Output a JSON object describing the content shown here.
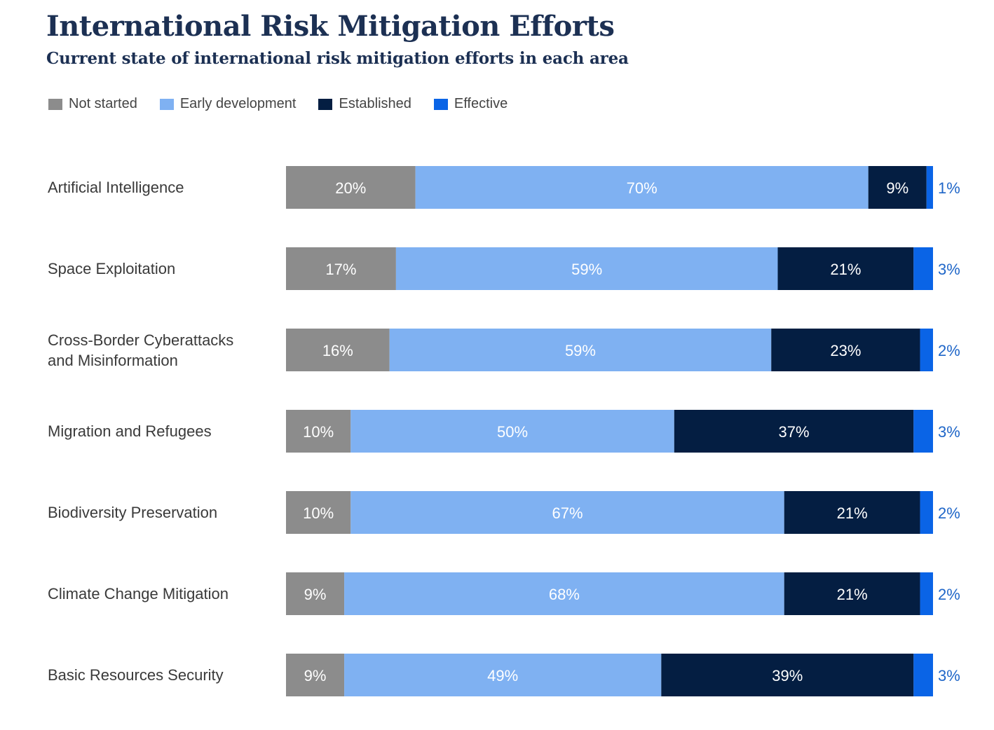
{
  "chart_data": {
    "type": "bar",
    "orientation": "horizontal",
    "stacked": true,
    "title": "International Risk Mitigation Efforts",
    "subtitle": "Current state of international risk mitigation efforts in each area",
    "xlabel": "",
    "ylabel": "",
    "xlim": [
      0,
      100
    ],
    "grid": false,
    "legend_position": "top-left",
    "categories": [
      [
        "Artificial Intelligence"
      ],
      [
        "Space Exploitation"
      ],
      [
        "Cross-Border Cyberattacks",
        "and Misinformation"
      ],
      [
        "Migration and Refugees"
      ],
      [
        "Biodiversity Preservation"
      ],
      [
        "Climate Change Mitigation"
      ],
      [
        "Basic Resources Security"
      ]
    ],
    "series": [
      {
        "name": "Not started",
        "color": "#8c8c8c",
        "values": [
          20,
          17,
          16,
          10,
          10,
          9,
          9
        ]
      },
      {
        "name": "Early development",
        "color": "#7fb1f2",
        "values": [
          70,
          59,
          59,
          50,
          67,
          68,
          49
        ]
      },
      {
        "name": "Established",
        "color": "#041e42",
        "values": [
          9,
          21,
          23,
          37,
          21,
          21,
          39
        ]
      },
      {
        "name": "Effective",
        "color": "#0a64e6",
        "values": [
          1,
          3,
          2,
          3,
          2,
          2,
          3
        ]
      }
    ],
    "value_suffix": "%",
    "outside_label_color": "#1f66c8"
  }
}
